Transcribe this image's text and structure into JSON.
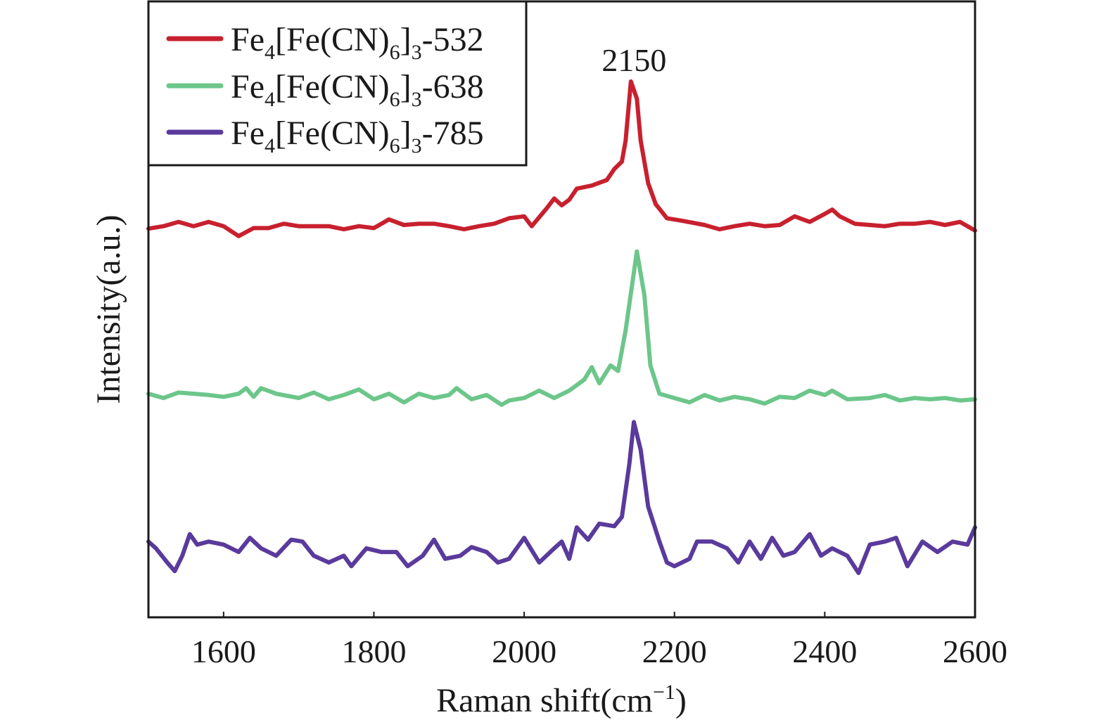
{
  "chart_data": {
    "type": "line",
    "title": "",
    "xlabel": "Raman shift(cm",
    "xlabel_sup": "−1",
    "xlabel_end": ")",
    "ylabel": "Intensity(a.u.)",
    "xlim": [
      1500,
      2600
    ],
    "ylim": [
      0,
      100
    ],
    "xticks": [
      1600,
      1800,
      2000,
      2200,
      2400,
      2600
    ],
    "grid": false,
    "legend_position": "top-left",
    "annotations": [
      {
        "text": "2150",
        "x": 2150,
        "y": 90.5
      }
    ],
    "series": [
      {
        "name": "Fe4[Fe(CN)6]3-532",
        "color": "#c8202e",
        "x": [
          1500,
          1520,
          1540,
          1560,
          1580,
          1600,
          1620,
          1640,
          1660,
          1680,
          1700,
          1720,
          1740,
          1760,
          1780,
          1800,
          1820,
          1840,
          1860,
          1880,
          1900,
          1920,
          1940,
          1960,
          1980,
          2000,
          2010,
          2030,
          2040,
          2050,
          2060,
          2070,
          2090,
          2110,
          2120,
          2130,
          2135,
          2142,
          2150,
          2155,
          2165,
          2175,
          2190,
          2210,
          2240,
          2260,
          2280,
          2300,
          2320,
          2340,
          2360,
          2380,
          2400,
          2410,
          2420,
          2440,
          2460,
          2480,
          2500,
          2520,
          2540,
          2560,
          2580,
          2600
        ],
        "y": [
          63.1,
          63.5,
          64.2,
          63.5,
          64.2,
          63.5,
          61.9,
          63.2,
          63.2,
          63.9,
          63.5,
          63.5,
          63.5,
          63.0,
          63.5,
          63.2,
          64.6,
          63.7,
          63.9,
          63.9,
          63.5,
          63.0,
          63.5,
          63.9,
          64.8,
          65.1,
          63.5,
          66.4,
          68.0,
          66.9,
          67.8,
          69.6,
          70.1,
          71.0,
          72.8,
          74.0,
          77.4,
          87.0,
          84.2,
          77.4,
          70.5,
          67.1,
          64.8,
          64.4,
          63.7,
          63.0,
          63.5,
          63.9,
          63.5,
          63.7,
          65.1,
          64.2,
          65.5,
          66.2,
          65.1,
          63.9,
          63.7,
          63.5,
          63.9,
          63.9,
          64.2,
          63.7,
          64.2,
          62.8
        ]
      },
      {
        "name": "Fe4[Fe(CN)6]3-638",
        "color": "#6cc68a",
        "x": [
          1500,
          1520,
          1540,
          1560,
          1580,
          1600,
          1620,
          1630,
          1640,
          1650,
          1670,
          1700,
          1720,
          1740,
          1760,
          1780,
          1800,
          1820,
          1840,
          1860,
          1880,
          1900,
          1910,
          1930,
          1950,
          1970,
          1980,
          2000,
          2020,
          2040,
          2060,
          2080,
          2090,
          2100,
          2115,
          2125,
          2135,
          2150,
          2160,
          2168,
          2180,
          2200,
          2220,
          2240,
          2260,
          2280,
          2300,
          2320,
          2340,
          2360,
          2380,
          2400,
          2410,
          2430,
          2460,
          2480,
          2500,
          2520,
          2540,
          2560,
          2580,
          2600
        ],
        "y": [
          36.3,
          35.6,
          36.5,
          36.3,
          36.1,
          35.8,
          36.3,
          37.2,
          35.8,
          37.2,
          36.3,
          35.6,
          36.5,
          35.4,
          36.1,
          37.0,
          35.4,
          36.3,
          34.9,
          36.3,
          35.6,
          36.1,
          37.2,
          35.4,
          36.1,
          34.5,
          35.2,
          35.6,
          36.8,
          35.6,
          36.8,
          38.6,
          40.6,
          38.0,
          40.9,
          40.0,
          46.6,
          59.4,
          52.3,
          40.9,
          36.3,
          35.6,
          34.9,
          36.1,
          35.2,
          35.8,
          35.4,
          34.7,
          35.8,
          35.6,
          36.8,
          36.1,
          36.8,
          35.4,
          35.6,
          36.1,
          35.2,
          35.6,
          35.4,
          35.6,
          35.2,
          35.4
        ]
      },
      {
        "name": "Fe4[Fe(CN)6]3-785",
        "color": "#5a3a9c",
        "x": [
          1500,
          1510,
          1525,
          1535,
          1545,
          1555,
          1565,
          1580,
          1600,
          1620,
          1635,
          1650,
          1670,
          1690,
          1705,
          1720,
          1740,
          1760,
          1770,
          1790,
          1810,
          1830,
          1845,
          1865,
          1880,
          1895,
          1915,
          1930,
          1950,
          1965,
          1980,
          2000,
          2020,
          2040,
          2050,
          2060,
          2070,
          2085,
          2100,
          2120,
          2130,
          2140,
          2146,
          2155,
          2165,
          2180,
          2190,
          2200,
          2220,
          2230,
          2250,
          2270,
          2285,
          2300,
          2315,
          2330,
          2345,
          2360,
          2380,
          2395,
          2410,
          2430,
          2445,
          2460,
          2480,
          2495,
          2510,
          2530,
          2550,
          2570,
          2590,
          2600
        ],
        "y": [
          12.3,
          11.2,
          8.9,
          7.5,
          10.0,
          13.5,
          11.8,
          12.3,
          11.8,
          10.6,
          12.9,
          11.2,
          10.0,
          12.6,
          12.3,
          10.0,
          8.9,
          10.0,
          8.3,
          11.2,
          10.6,
          10.6,
          8.3,
          10.0,
          12.6,
          9.5,
          10.0,
          11.4,
          10.6,
          8.9,
          9.5,
          12.9,
          8.9,
          11.2,
          12.3,
          9.5,
          14.6,
          12.6,
          15.2,
          14.8,
          16.3,
          24.9,
          31.7,
          27.2,
          18.0,
          12.3,
          8.9,
          8.3,
          9.5,
          12.3,
          12.3,
          11.2,
          8.9,
          12.3,
          9.5,
          12.9,
          10.0,
          10.6,
          13.5,
          10.0,
          11.2,
          10.0,
          7.2,
          11.8,
          12.3,
          12.9,
          8.3,
          12.3,
          10.6,
          12.3,
          11.8,
          14.6
        ]
      }
    ]
  }
}
